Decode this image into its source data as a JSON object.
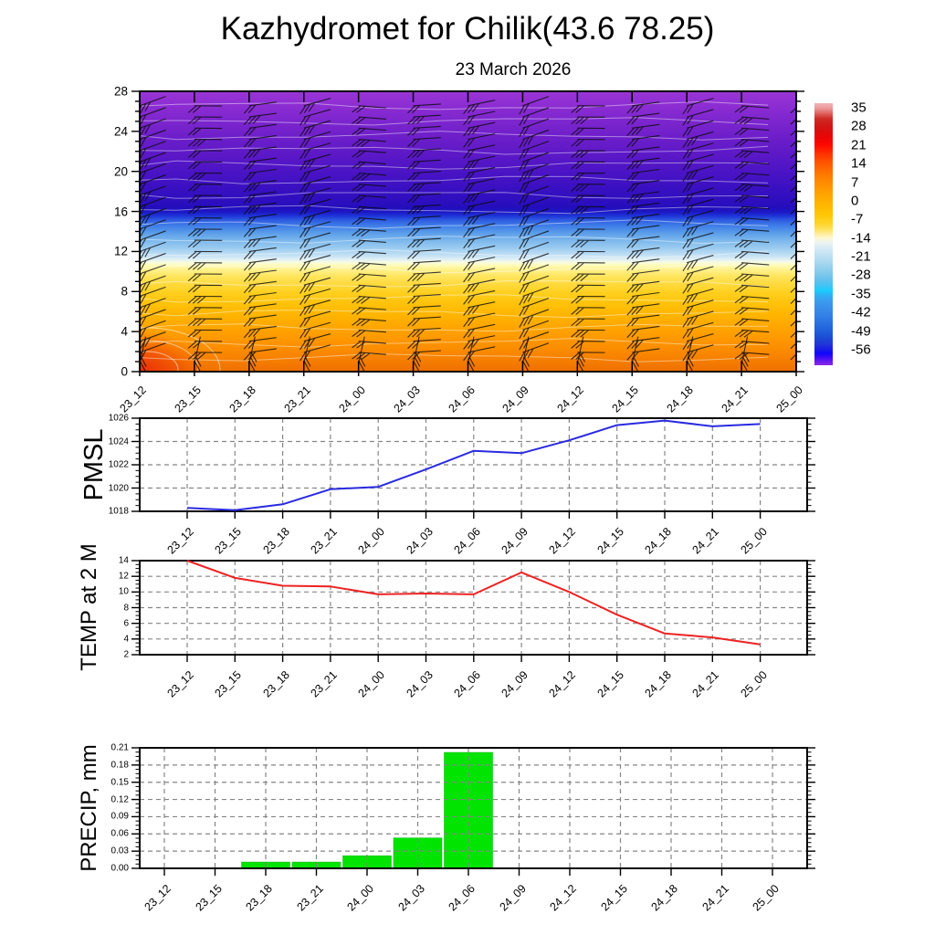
{
  "header": {
    "title": "Kazhydromet for Chilik(43.6 78.25)",
    "subtitle": "23 March 2026"
  },
  "time_axis": {
    "labels": [
      "23_12",
      "23_15",
      "23_18",
      "23_21",
      "24_00",
      "24_03",
      "24_06",
      "24_09",
      "24_12",
      "24_15",
      "24_18",
      "24_21",
      "25_00"
    ]
  },
  "colors": {
    "pmsl_line": "#2a2ae0",
    "temp_line": "#ee2222",
    "precip_bar": "#00e400",
    "grid": "#858585",
    "axis": "#000000"
  },
  "chart_data": [
    {
      "id": "upper_air_section",
      "type": "heatmap",
      "title": "",
      "ylabel": "",
      "ylim": [
        0,
        28
      ],
      "yticks": [
        0,
        4,
        8,
        12,
        16,
        20,
        24,
        28
      ],
      "x": [
        "23_12",
        "23_15",
        "23_18",
        "23_21",
        "24_00",
        "24_03",
        "24_06",
        "24_09",
        "24_12",
        "24_15",
        "24_18",
        "24_21",
        "25_00"
      ],
      "description": "Time-height cross-section of temperature (shaded, deg C) with wind barbs and white contour lines; warm orange near surface grading to purple at 28",
      "approx_vertical_profile": [
        {
          "height": 0,
          "temp_c": 10
        },
        {
          "height": 4,
          "temp_c": 4
        },
        {
          "height": 8,
          "temp_c": -4
        },
        {
          "height": 11,
          "temp_c": -14
        },
        {
          "height": 14,
          "temp_c": -28
        },
        {
          "height": 16,
          "temp_c": -40
        },
        {
          "height": 18,
          "temp_c": -52
        },
        {
          "height": 22,
          "temp_c": -56
        },
        {
          "height": 28,
          "temp_c": -60
        }
      ],
      "colorbar_labels": [
        35,
        28,
        21,
        14,
        7,
        0,
        -7,
        -14,
        -21,
        -28,
        -35,
        -42,
        -49,
        -56
      ],
      "legend_position": "right"
    },
    {
      "id": "pmsl",
      "type": "line",
      "label": "PMSL",
      "color": "#2a2ae0",
      "ylim": [
        1018,
        1026
      ],
      "yticks": [
        1026,
        1024,
        1022,
        1020,
        1018
      ],
      "x": [
        "23_12",
        "23_15",
        "23_18",
        "23_21",
        "24_00",
        "24_03",
        "24_06",
        "24_09",
        "24_12",
        "24_15",
        "24_18",
        "24_21",
        "25_00"
      ],
      "values": [
        1018.3,
        1018.1,
        1018.6,
        1019.9,
        1020.1,
        1021.6,
        1023.2,
        1023.0,
        1024.1,
        1025.4,
        1025.8,
        1025.3,
        1025.5
      ],
      "grid": "dashed"
    },
    {
      "id": "temp2m",
      "type": "line",
      "label": "TEMP at 2 M",
      "color": "#ee2222",
      "ylim": [
        2,
        14
      ],
      "yticks": [
        14,
        12,
        10,
        8,
        6,
        4,
        2
      ],
      "x": [
        "23_12",
        "23_15",
        "23_18",
        "23_21",
        "24_00",
        "24_03",
        "24_06",
        "24_09",
        "24_12",
        "24_15",
        "24_18",
        "24_21",
        "25_00"
      ],
      "values": [
        14.0,
        11.8,
        10.8,
        10.7,
        9.7,
        9.8,
        9.7,
        12.5,
        10.0,
        7.1,
        4.7,
        4.2,
        3.3
      ],
      "grid": "dashed"
    },
    {
      "id": "precip",
      "type": "bar",
      "label": "PRECIP, mm",
      "color": "#00e400",
      "ylim": [
        0,
        0.21
      ],
      "yticks": [
        0.21,
        0.18,
        0.15,
        0.12,
        0.09,
        0.06,
        0.03,
        0.0
      ],
      "x": [
        "23_12",
        "23_15",
        "23_18",
        "23_21",
        "24_00",
        "24_03",
        "24_06",
        "24_09",
        "24_12",
        "24_15",
        "24_18",
        "24_21",
        "25_00"
      ],
      "values": [
        0,
        0,
        0.011,
        0.011,
        0.022,
        0.053,
        0.202,
        0,
        0,
        0,
        0,
        0,
        0
      ],
      "grid": "dashed"
    }
  ]
}
